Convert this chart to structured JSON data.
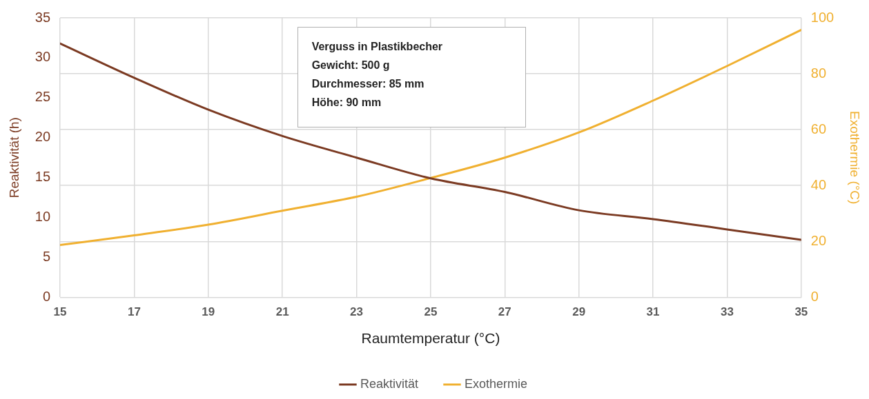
{
  "chart_data": {
    "type": "line",
    "xlabel": "Raumtemperatur (°C)",
    "ylabel": "Reaktivität (h)",
    "y2label": "Exothermie (°C)",
    "x": [
      15,
      17,
      19,
      21,
      23,
      25,
      27,
      29,
      31,
      33,
      35
    ],
    "series": [
      {
        "name": "Reaktivität",
        "color": "#7b3a22",
        "values": [
          31.8,
          27.5,
          23.5,
          20.2,
          17.5,
          14.9,
          13.2,
          10.9,
          9.8,
          8.5,
          7.2
        ]
      },
      {
        "name": "Exothermie",
        "color": "#f0b030",
        "axis": "y2",
        "values": [
          18.7,
          22.2,
          26,
          31,
          36,
          42.7,
          50,
          59,
          70.4,
          82.8,
          95.7
        ]
      }
    ],
    "xlim": [
      15,
      35
    ],
    "xticks": [
      15,
      17,
      19,
      21,
      23,
      25,
      27,
      29,
      31,
      33,
      35
    ],
    "ylim": [
      0,
      35
    ],
    "yticks": [
      0,
      5,
      10,
      15,
      20,
      25,
      30,
      35
    ],
    "y2lim": [
      0,
      100
    ],
    "y2ticks": [
      0,
      20,
      40,
      60,
      80,
      100
    ],
    "annotations": [
      "Verguss in Plastikbecher\nGewicht: 500 g\nDurchmesser: 85 mm\nHöhe: 90 mm"
    ],
    "grid": true,
    "legend": "bottom",
    "marker": "none",
    "line_style": "solid"
  }
}
